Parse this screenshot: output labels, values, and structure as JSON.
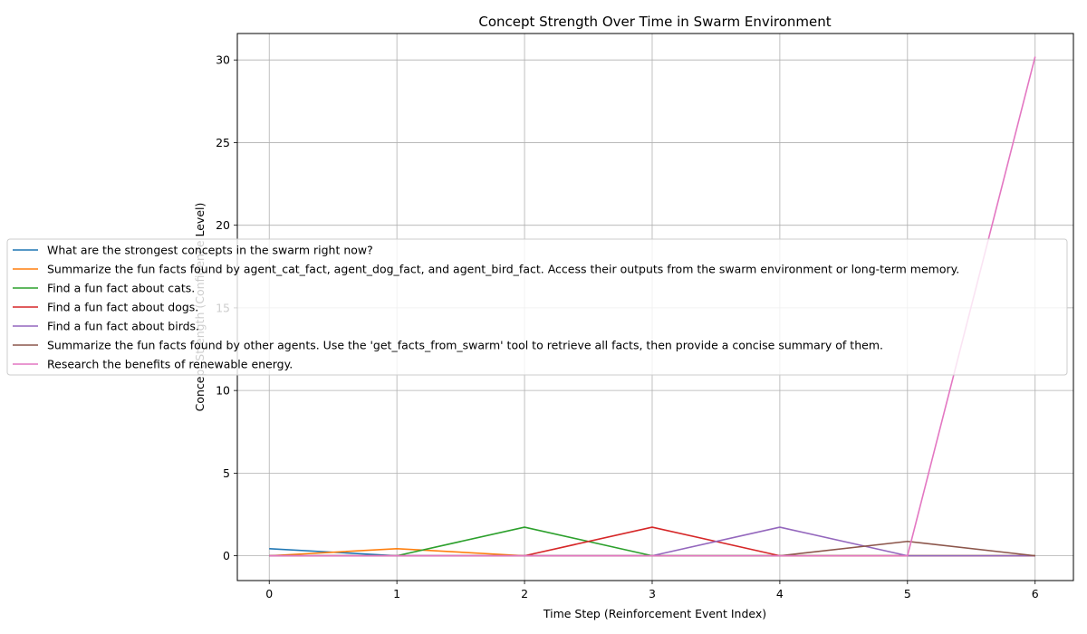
{
  "chart_data": {
    "type": "line",
    "title": "Concept Strength Over Time in Swarm Environment",
    "xlabel": "Time Step (Reinforcement Event Index)",
    "ylabel": "Concept Strength (Confidence Level)",
    "x": [
      0,
      1,
      2,
      3,
      4,
      5,
      6
    ],
    "xlim": [
      -0.25,
      6.3
    ],
    "ylim": [
      -1.5,
      31.6
    ],
    "xticks": [
      0,
      1,
      2,
      3,
      4,
      5,
      6
    ],
    "yticks": [
      0,
      5,
      10,
      15,
      20,
      25,
      30
    ],
    "grid": true,
    "legend_position": "center-left",
    "series": [
      {
        "name": "What are the strongest concepts in the swarm right now?",
        "color": "#1f77b4",
        "values": [
          0.43,
          0.0,
          0.0,
          0.0,
          0.0,
          0.0,
          0.0
        ]
      },
      {
        "name": "Summarize the fun facts found by agent_cat_fact, agent_dog_fact, and agent_bird_fact. Access their outputs from the swarm environment or long-term memory.",
        "color": "#ff7f0e",
        "values": [
          0.0,
          0.43,
          0.0,
          0.0,
          0.0,
          0.0,
          0.0
        ]
      },
      {
        "name": "Find a fun fact about cats.",
        "color": "#2ca02c",
        "values": [
          0.0,
          0.0,
          1.73,
          0.0,
          0.0,
          0.0,
          0.0
        ]
      },
      {
        "name": "Find a fun fact about dogs.",
        "color": "#d62728",
        "values": [
          0.0,
          0.0,
          0.0,
          1.73,
          0.0,
          0.0,
          0.0
        ]
      },
      {
        "name": "Find a fun fact about birds.",
        "color": "#9467bd",
        "values": [
          0.0,
          0.0,
          0.0,
          0.0,
          1.73,
          0.0,
          0.0
        ]
      },
      {
        "name": "Summarize the fun facts found by other agents. Use the 'get_facts_from_swarm' tool to retrieve all facts, then provide a concise summary of them.",
        "color": "#8c564b",
        "values": [
          0.0,
          0.0,
          0.0,
          0.0,
          0.0,
          0.87,
          0.0
        ]
      },
      {
        "name": "Research the benefits of renewable energy.",
        "color": "#e377c2",
        "values": [
          0.0,
          0.0,
          0.0,
          0.0,
          0.0,
          0.0,
          30.2
        ]
      }
    ]
  }
}
